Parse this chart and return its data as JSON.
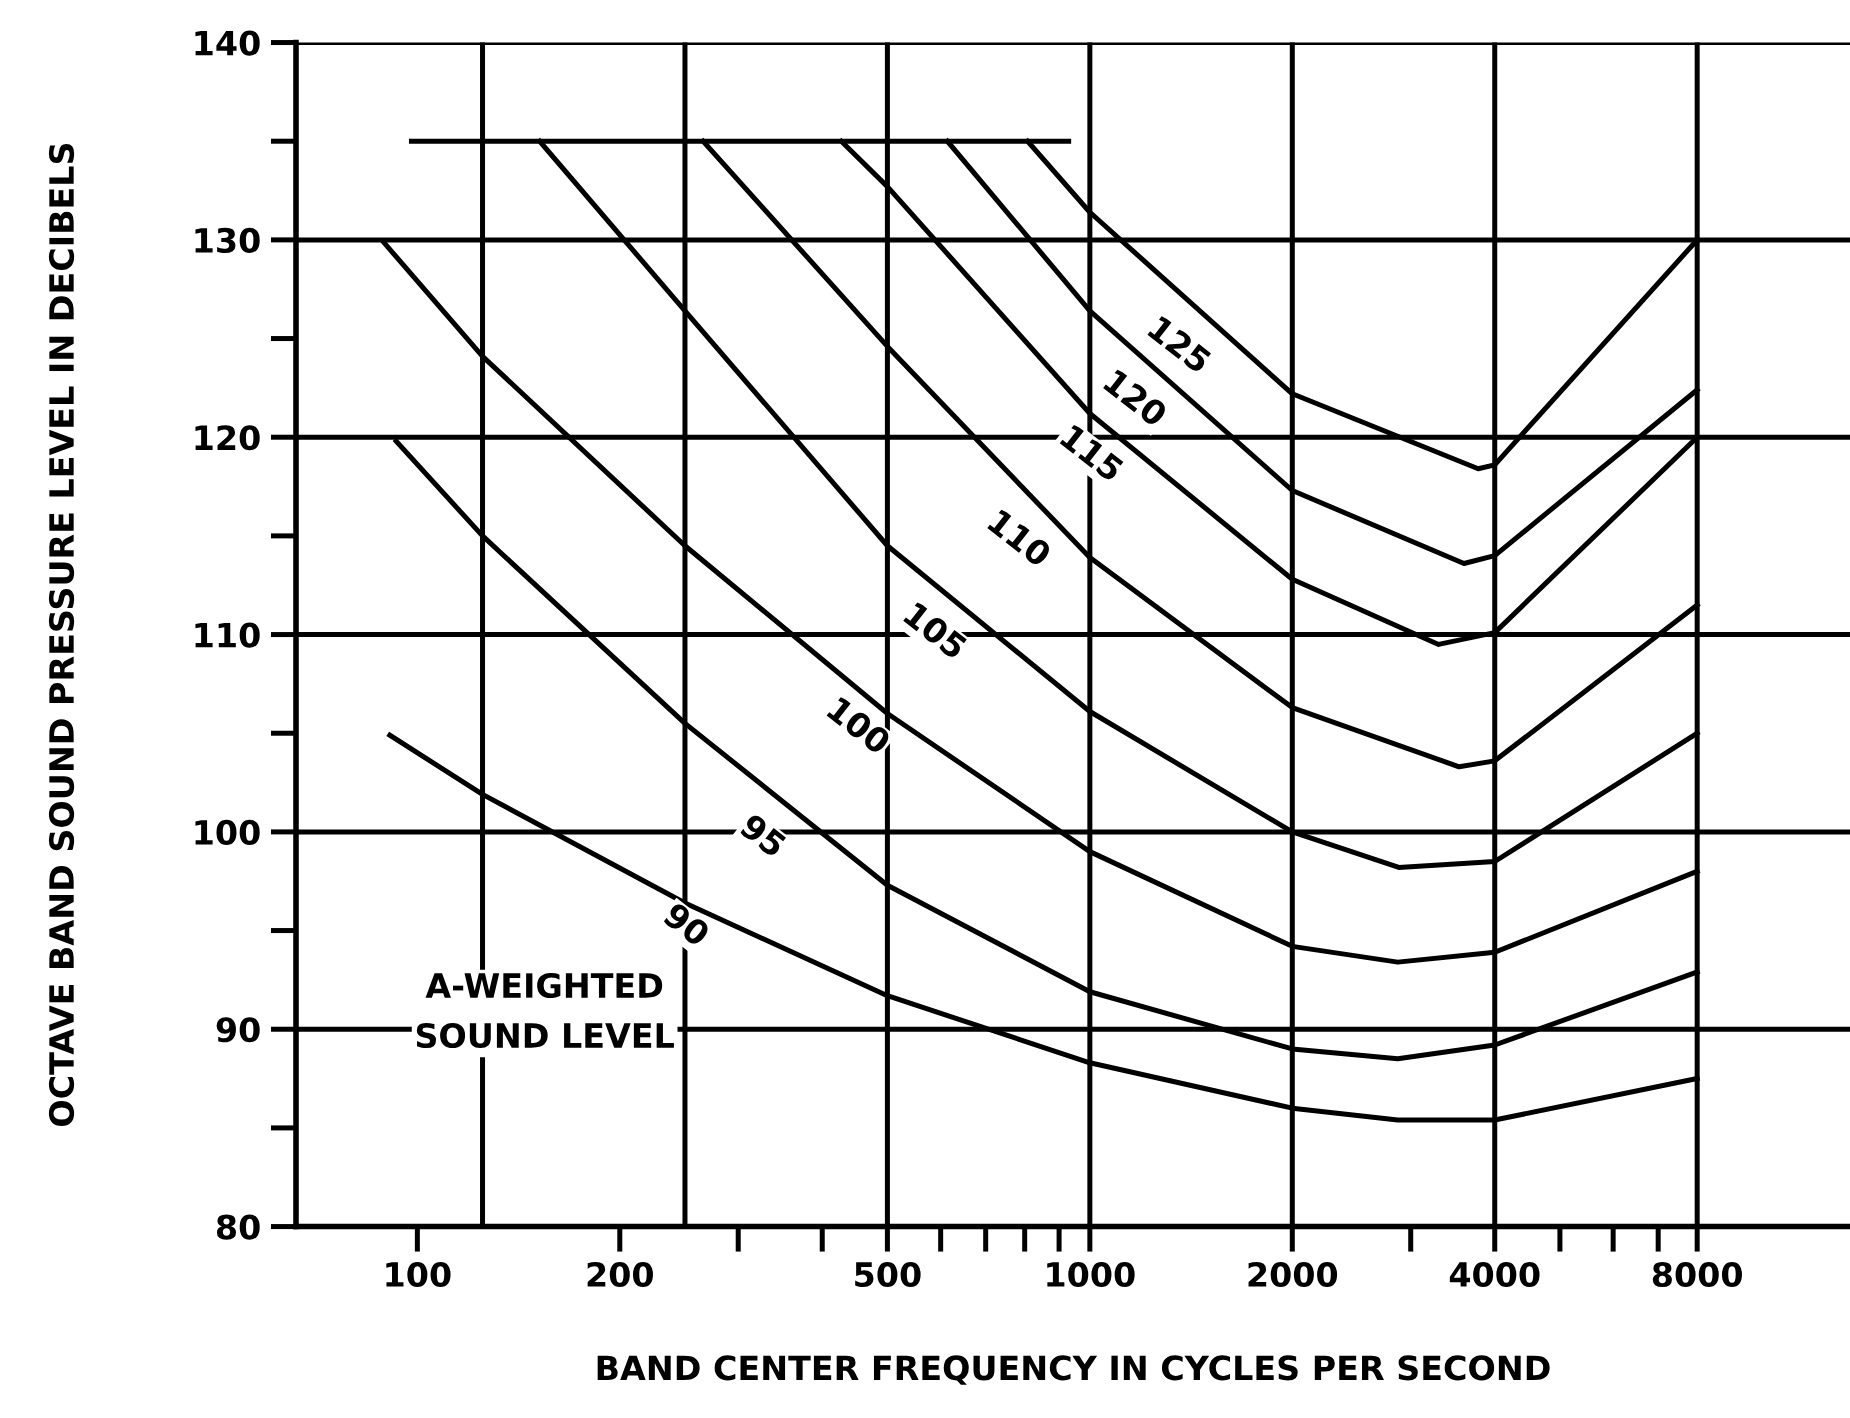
{
  "chart_data": {
    "type": "line",
    "xlabel": "BAND CENTER FREQUENCY IN CYCLES PER SECOND",
    "ylabel": "OCTAVE BAND SOUND PRESSURE LEVEL IN DECIBELS",
    "log": "x",
    "grid": "y",
    "marker": "none",
    "line_style": "solid",
    "xlim": [
      66,
      13500
    ],
    "ylim": [
      80,
      140
    ],
    "xticks": [
      100,
      200,
      {
        "value": 300,
        "label": null
      },
      {
        "value": 400,
        "label": null
      },
      500,
      {
        "value": 600,
        "label": null
      },
      {
        "value": 700,
        "label": null
      },
      {
        "value": 800,
        "label": null
      },
      {
        "value": 900,
        "label": null
      },
      1000,
      2000,
      {
        "value": 3000,
        "label": null
      },
      4000,
      {
        "value": 5000,
        "label": null
      },
      {
        "value": 6000,
        "label": null
      },
      {
        "value": 7000,
        "label": null
      },
      8000
    ],
    "yticks": [
      80,
      {
        "value": 85,
        "label": null
      },
      90,
      {
        "value": 95,
        "label": null
      },
      100,
      {
        "value": 105,
        "label": null
      },
      110,
      {
        "value": 115,
        "label": null
      },
      120,
      {
        "value": 125,
        "label": null
      },
      130,
      {
        "value": 135,
        "label": null
      },
      140
    ],
    "ref_lines": [
      {
        "axis": "x",
        "value": 125,
        "label": null,
        "color": "#000000"
      },
      {
        "axis": "x",
        "value": 250,
        "label": null,
        "color": "#000000"
      },
      {
        "axis": "x",
        "value": 500,
        "label": null,
        "color": "#000000"
      },
      {
        "axis": "x",
        "value": 1000,
        "label": null,
        "color": "#000000"
      },
      {
        "axis": "x",
        "value": 2000,
        "label": null,
        "color": "#000000"
      },
      {
        "axis": "x",
        "value": 4000,
        "label": null,
        "color": "#000000"
      },
      {
        "axis": "x",
        "value": 8000,
        "label": null,
        "color": "#000000"
      }
    ],
    "series": [
      {
        "color": "#000000",
        "x": [
          98,
          930
        ],
        "values": [
          135,
          135
        ]
      },
      {
        "color": "#000000",
        "x": [
          91,
          125,
          250,
          500,
          1000,
          2000,
          2870,
          4000,
          8000
        ],
        "values": [
          104.9,
          101.9,
          96.4,
          91.7,
          88.3,
          86.0,
          85.4,
          85.4,
          87.5
        ]
      },
      {
        "color": "#000000",
        "x": [
          93,
          125,
          250,
          500,
          1000,
          2000,
          2870,
          4000,
          8000
        ],
        "values": [
          119.8,
          115.0,
          105.5,
          97.3,
          91.9,
          89.0,
          88.5,
          89.2,
          92.9
        ]
      },
      {
        "color": "#000000",
        "x": [
          89,
          125,
          250,
          500,
          1000,
          2000,
          2870,
          4000,
          8000
        ],
        "values": [
          129.9,
          124.1,
          114.5,
          106.0,
          99.0,
          94.2,
          93.4,
          93.9,
          98.0
        ]
      },
      {
        "color": "#000000",
        "x": [
          152,
          250,
          500,
          1000,
          2000,
          2880,
          4000,
          8000
        ],
        "values": [
          135,
          126.4,
          114.5,
          106.1,
          100.0,
          98.2,
          98.5,
          105.0
        ]
      },
      {
        "color": "#000000",
        "x": [
          266,
          500,
          1000,
          2000,
          3540,
          4000,
          8000
        ],
        "values": [
          135,
          124.6,
          113.9,
          106.3,
          103.3,
          103.6,
          111.5
        ]
      },
      {
        "color": "#000000",
        "x": [
          427,
          500,
          1000,
          2000,
          3300,
          4000,
          8000
        ],
        "values": [
          135,
          132.7,
          121.2,
          112.8,
          109.5,
          110.1,
          120.0
        ]
      },
      {
        "color": "#000000",
        "x": [
          614,
          1000,
          2000,
          3600,
          4000,
          8000
        ],
        "values": [
          135,
          126.4,
          117.3,
          113.6,
          114.0,
          122.4
        ]
      },
      {
        "color": "#000000",
        "x": [
          808,
          1000,
          2000,
          3780,
          4000,
          8000
        ],
        "values": [
          135,
          131.4,
          122.2,
          118.4,
          118.6,
          130.0
        ]
      }
    ],
    "annotations": [
      {
        "text": "90",
        "x": 250,
        "y": 95.2
      },
      {
        "text": "95",
        "x": 325,
        "y": 99.7
      },
      {
        "text": "100",
        "x": 450,
        "y": 105.3
      },
      {
        "text": "105",
        "x": 585,
        "y": 110.1
      },
      {
        "text": "110",
        "x": 780,
        "y": 114.8
      },
      {
        "text": "115",
        "x": 1000,
        "y": 119.1
      },
      {
        "text": "120",
        "x": 1160,
        "y": 121.9
      },
      {
        "text": "125",
        "x": 1350,
        "y": 124.6
      },
      "A-WEIGHTED\nSOUND LEVEL"
    ]
  }
}
